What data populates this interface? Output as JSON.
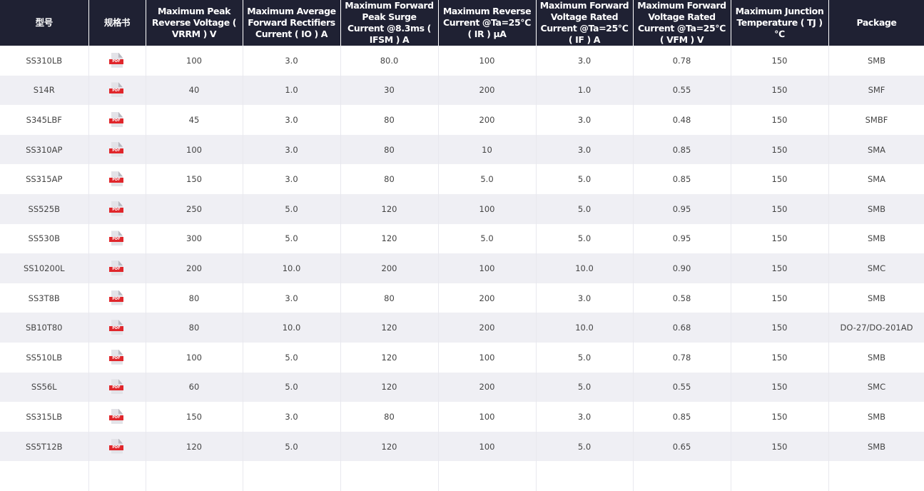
{
  "headers": [
    "型号",
    "规格书",
    "Maximum Peak Reverse Voltage ( VRRM ) V",
    "Maximum Average Forward Rectifiers Current ( IO ) A",
    "Maximum Forward Peak Surge Current @8.3ms ( IFSM ) A",
    "Maximum Reverse Current @Ta=25℃ ( IR ) μA",
    "Maximum Forward Voltage Rated Current @Ta=25℃ ( IF ) A",
    "Maximum Forward Voltage Rated Current @Ta=25℃ ( VFM ) V",
    "Maximum Junction Temperature ( TJ ) ℃",
    "Package"
  ],
  "pdf_label": "PDF",
  "rows": [
    [
      "SS310LB",
      "100",
      "3.0",
      "80.0",
      "100",
      "3.0",
      "0.78",
      "150",
      "SMB"
    ],
    [
      "S14R",
      "40",
      "1.0",
      "30",
      "200",
      "1.0",
      "0.55",
      "150",
      "SMF"
    ],
    [
      "S345LBF",
      "45",
      "3.0",
      "80",
      "200",
      "3.0",
      "0.48",
      "150",
      "SMBF"
    ],
    [
      "SS310AP",
      "100",
      "3.0",
      "80",
      "10",
      "3.0",
      "0.85",
      "150",
      "SMA"
    ],
    [
      "SS315AP",
      "150",
      "3.0",
      "80",
      "5.0",
      "5.0",
      "0.85",
      "150",
      "SMA"
    ],
    [
      "SS525B",
      "250",
      "5.0",
      "120",
      "100",
      "5.0",
      "0.95",
      "150",
      "SMB"
    ],
    [
      "SS530B",
      "300",
      "5.0",
      "120",
      "5.0",
      "5.0",
      "0.95",
      "150",
      "SMB"
    ],
    [
      "SS10200L",
      "200",
      "10.0",
      "200",
      "100",
      "10.0",
      "0.90",
      "150",
      "SMC"
    ],
    [
      "SS3T8B",
      "80",
      "3.0",
      "80",
      "200",
      "3.0",
      "0.58",
      "150",
      "SMB"
    ],
    [
      "SB10T80",
      "80",
      "10.0",
      "120",
      "200",
      "10.0",
      "0.68",
      "150",
      "DO-27/DO-201AD"
    ],
    [
      "SS510LB",
      "100",
      "5.0",
      "120",
      "100",
      "5.0",
      "0.78",
      "150",
      "SMB"
    ],
    [
      "SS56L",
      "60",
      "5.0",
      "120",
      "200",
      "5.0",
      "0.55",
      "150",
      "SMC"
    ],
    [
      "SS315LB",
      "150",
      "3.0",
      "80",
      "100",
      "3.0",
      "0.85",
      "150",
      "SMB"
    ],
    [
      "SS5T12B",
      "120",
      "5.0",
      "120",
      "100",
      "5.0",
      "0.65",
      "150",
      "SMB"
    ]
  ]
}
